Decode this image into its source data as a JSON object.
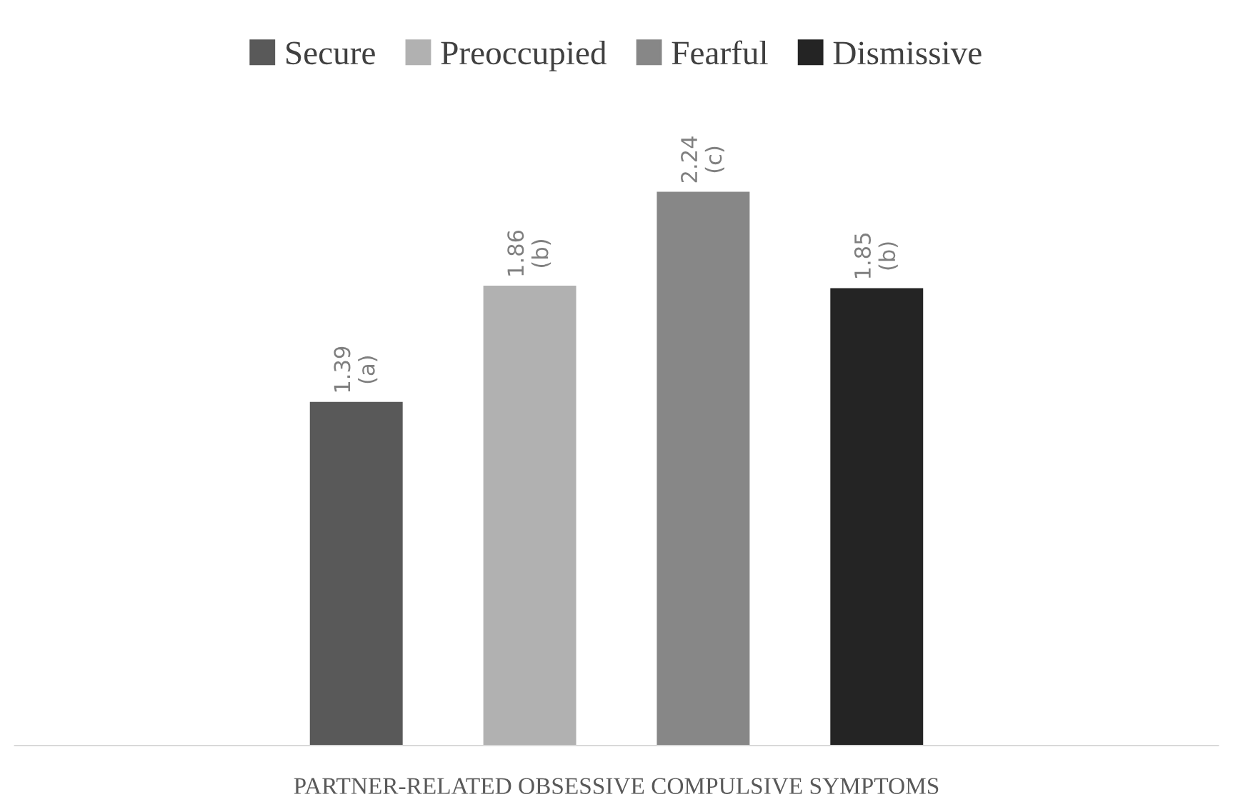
{
  "chart_data": {
    "type": "bar",
    "xlabel": "PARTNER-RELATED OBSESSIVE COMPULSIVE SYMPTOMS",
    "categories": [
      null,
      null,
      null,
      null
    ],
    "stacked": true,
    "series": [
      {
        "name": "Secure",
        "color": "#595959",
        "values": [
          1.39,
          null,
          null,
          null
        ],
        "value_labels": [
          "1.39\n(a)",
          null,
          null,
          null
        ]
      },
      {
        "name": "Preoccupied",
        "color": "#b1b1b1",
        "values": [
          null,
          1.86,
          null,
          null
        ],
        "value_labels": [
          null,
          "1.86\n(b)",
          null,
          null
        ]
      },
      {
        "name": "Fearful",
        "color": "#878787",
        "values": [
          null,
          null,
          2.24,
          null
        ],
        "value_labels": [
          null,
          null,
          "2.24\n(c)",
          null
        ]
      },
      {
        "name": "Dismissive",
        "color": "#242424",
        "values": [
          null,
          null,
          null,
          1.85
        ],
        "value_labels": [
          null,
          null,
          null,
          "1.85\n(b)"
        ]
      }
    ],
    "legend": "top",
    "tick_labels": false
  }
}
